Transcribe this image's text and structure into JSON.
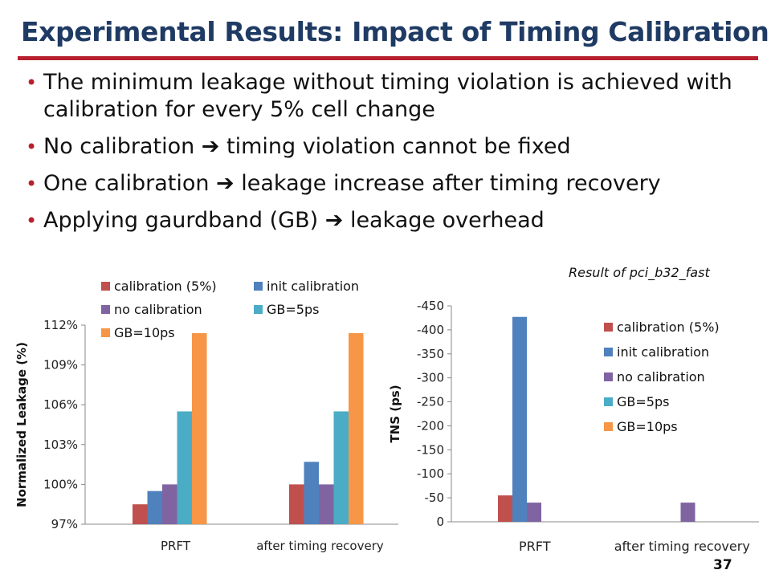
{
  "slide": {
    "title": "Experimental Results: Impact of Timing Calibration",
    "bullets": [
      "The minimum leakage without timing violation is achieved with calibration for every 5% cell change",
      "No calibration ➔ timing violation cannot be fixed",
      "One calibration ➔ leakage increase after timing recovery",
      "Applying gaurdband (GB) ➔ leakage overhead"
    ],
    "caption": "Result of pci_b32_fast",
    "page_number": "37"
  },
  "colors": {
    "title": "#1f3b64",
    "rule": "#b7202e",
    "calibration_5": "#c0504d",
    "init_calibration": "#4f81bd",
    "no_calibration": "#8064a2",
    "gb_5ps": "#4bacc6",
    "gb_10ps": "#f79646"
  },
  "chart_data": [
    {
      "type": "bar",
      "categories": [
        "PRFT",
        "after timing recovery"
      ],
      "series": [
        {
          "name": "calibration (5%)",
          "values": [
            98.5,
            100.0
          ]
        },
        {
          "name": "init calibration",
          "values": [
            99.5,
            101.7
          ]
        },
        {
          "name": "no calibration",
          "values": [
            100.0,
            100.0
          ]
        },
        {
          "name": "GB=5ps",
          "values": [
            105.5,
            105.5
          ]
        },
        {
          "name": "GB=10ps",
          "values": [
            111.4,
            111.4
          ]
        }
      ],
      "ylabel": "Normalized Leakage (%)",
      "ylim": [
        97,
        112
      ],
      "yticks": [
        "97%",
        "100%",
        "103%",
        "106%",
        "109%",
        "112%"
      ],
      "legend": "top",
      "grid": false
    },
    {
      "type": "bar",
      "categories": [
        "PRFT",
        "after timing recovery"
      ],
      "series": [
        {
          "name": "calibration (5%)",
          "values": [
            -55,
            0
          ]
        },
        {
          "name": "init calibration",
          "values": [
            -427,
            0
          ]
        },
        {
          "name": "no calibration",
          "values": [
            -40,
            -40
          ]
        },
        {
          "name": "GB=5ps",
          "values": [
            0,
            0
          ]
        },
        {
          "name": "GB=10ps",
          "values": [
            0,
            0
          ]
        }
      ],
      "ylabel": "TNS (ps)",
      "ylim": [
        0,
        -450
      ],
      "yticks": [
        "0",
        "-50",
        "-100",
        "-150",
        "-200",
        "-250",
        "-300",
        "-350",
        "-400",
        "-450"
      ],
      "legend": "right",
      "grid": false
    }
  ]
}
